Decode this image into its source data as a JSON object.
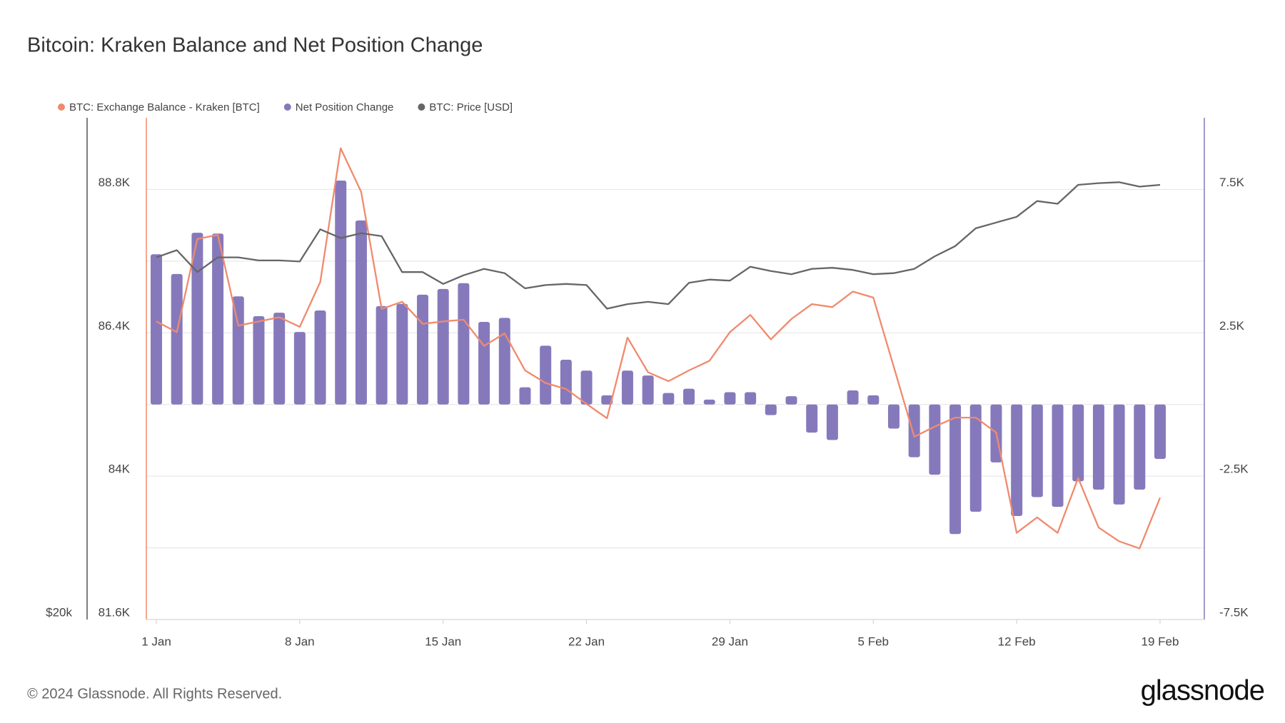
{
  "chart_data": {
    "type": "combo",
    "title": "Bitcoin: Kraken Balance and Net Position Change",
    "categories": [
      "1 Jan",
      null,
      null,
      null,
      null,
      null,
      null,
      "8 Jan",
      null,
      null,
      null,
      null,
      null,
      null,
      "15 Jan",
      null,
      null,
      null,
      null,
      null,
      null,
      "22 Jan",
      null,
      null,
      null,
      null,
      null,
      null,
      "29 Jan",
      null,
      null,
      null,
      null,
      null,
      null,
      "5 Feb",
      null,
      null,
      null,
      null,
      null,
      null,
      "12 Feb",
      null,
      null,
      null,
      null,
      null,
      null,
      "19 Feb"
    ],
    "series": [
      {
        "name": "BTC: Exchange Balance - Kraken [BTC]",
        "type": "line",
        "axis": "y",
        "color": "#f08a6e",
        "values": [
          86590,
          86410,
          87970,
          88040,
          86520,
          86590,
          86660,
          86500,
          87250,
          89490,
          88760,
          86800,
          86920,
          86550,
          86590,
          86620,
          86180,
          86390,
          85770,
          85560,
          85460,
          85210,
          84970,
          86320,
          85740,
          85590,
          85770,
          85930,
          86410,
          86700,
          86290,
          86630,
          86880,
          86830,
          87090,
          86990,
          85830,
          84660,
          84830,
          84980,
          84980,
          84730,
          83050,
          83310,
          83050,
          83970,
          83140,
          82910,
          82790,
          83640
        ]
      },
      {
        "name": "Net Position Change",
        "type": "bar",
        "axis": "y2",
        "color": "#8679bb",
        "values": [
          5240,
          4550,
          5990,
          5960,
          3770,
          3080,
          3200,
          2530,
          3280,
          7810,
          6420,
          3430,
          3510,
          3830,
          4030,
          4230,
          2880,
          3020,
          600,
          2050,
          1560,
          1180,
          320,
          1180,
          1010,
          400,
          550,
          170,
          430,
          430,
          -370,
          290,
          -980,
          -1240,
          490,
          320,
          -840,
          -1840,
          -2450,
          -4520,
          -3740,
          -2020,
          -3890,
          -3230,
          -3570,
          -2680,
          -2970,
          -3490,
          -2970,
          -1900
        ]
      },
      {
        "name": "BTC: Price [USD]",
        "type": "line",
        "axis": "y3",
        "color": "#666666",
        "values": [
          44200,
          44900,
          42800,
          44200,
          44200,
          43900,
          43900,
          43800,
          47000,
          46100,
          46600,
          46300,
          42800,
          42800,
          41700,
          42500,
          43100,
          42700,
          41300,
          41600,
          41700,
          41600,
          39500,
          39900,
          40100,
          39900,
          41800,
          42100,
          42000,
          43300,
          42900,
          42600,
          43100,
          43200,
          43000,
          42600,
          42700,
          43100,
          44300,
          45300,
          47100,
          47700,
          48300,
          50000,
          49700,
          51800,
          52000,
          52100,
          51600,
          51800
        ]
      }
    ],
    "ylim": [
      81600,
      90000
    ],
    "yticks": [
      {
        "value": 81600,
        "label": "81.6K"
      },
      {
        "value": 84000,
        "label": "84K"
      },
      {
        "value": 86400,
        "label": "86.4K"
      },
      {
        "value": 88800,
        "label": "88.8K"
      }
    ],
    "y2lim": [
      -7500,
      10000
    ],
    "y2ticks": [
      {
        "value": -7500,
        "label": "-7.5K"
      },
      {
        "value": -2500,
        "label": "-2.5K"
      },
      {
        "value": 2500,
        "label": "2.5K"
      },
      {
        "value": 7500,
        "label": "7.5K"
      }
    ],
    "y2_minor_gridlines": [
      -5000,
      0,
      5000
    ],
    "y3lim": [
      20000,
      60000
    ],
    "y3_log": true,
    "y3ticks": [
      {
        "value": 20000,
        "label": "$20k"
      }
    ],
    "grid": true,
    "legend": "top-left",
    "footer": "© 2024 Glassnode. All Rights Reserved.",
    "brand": "glassnode"
  }
}
